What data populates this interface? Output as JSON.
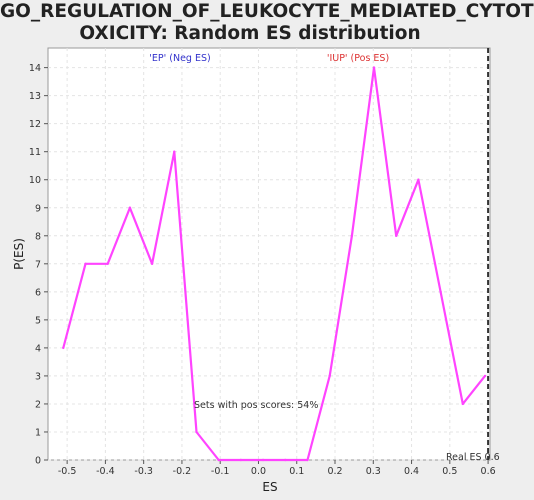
{
  "chart_data": {
    "type": "line",
    "title_line1": "GO_REGULATION_OF_LEUKOCYTE_MEDIATED_CYTOT",
    "title_line2": "OXICITY: Random ES distribution",
    "xlabel": "ES",
    "ylabel": "P(ES)",
    "xlim": [
      -0.55,
      0.605
    ],
    "ylim": [
      0,
      14.7
    ],
    "xticks": [
      "-0.5",
      "-0.4",
      "-0.3",
      "-0.2",
      "-0.1",
      "0.0",
      "0.1",
      "0.2",
      "0.3",
      "0.4",
      "0.5",
      "0.6"
    ],
    "xtick_values": [
      -0.5,
      -0.4,
      -0.3,
      -0.2,
      -0.1,
      0.0,
      0.1,
      0.2,
      0.3,
      0.4,
      0.5,
      0.6
    ],
    "yticks": [
      "0",
      "1",
      "2",
      "3",
      "4",
      "5",
      "6",
      "7",
      "8",
      "9",
      "10",
      "11",
      "12",
      "13",
      "14"
    ],
    "ytick_values": [
      0,
      1,
      2,
      3,
      4,
      5,
      6,
      7,
      8,
      9,
      10,
      11,
      12,
      13,
      14
    ],
    "grid": true,
    "series": [
      {
        "color": "#ff44ff",
        "x": [
          -0.51,
          -0.452,
          -0.394,
          -0.336,
          -0.278,
          -0.22,
          -0.162,
          -0.104,
          -0.046,
          0.012,
          0.07,
          0.128,
          0.186,
          0.244,
          0.302,
          0.36,
          0.418,
          0.476,
          0.534,
          0.592
        ],
        "y": [
          4,
          7,
          7,
          9,
          7,
          11,
          1,
          0,
          0,
          0,
          0,
          0,
          3,
          8,
          14,
          8,
          10,
          6,
          2,
          3
        ]
      }
    ],
    "real_es": 0.6,
    "annotations": {
      "neg_label": "'EP' (Neg ES)",
      "pos_label": "'IUP' (Pos ES)",
      "pos_scores_text": "Sets with pos scores: 54%",
      "real_es_text": "Real ES 0.6",
      "neg_color": "#3333cc",
      "pos_color": "#dd3333"
    }
  }
}
